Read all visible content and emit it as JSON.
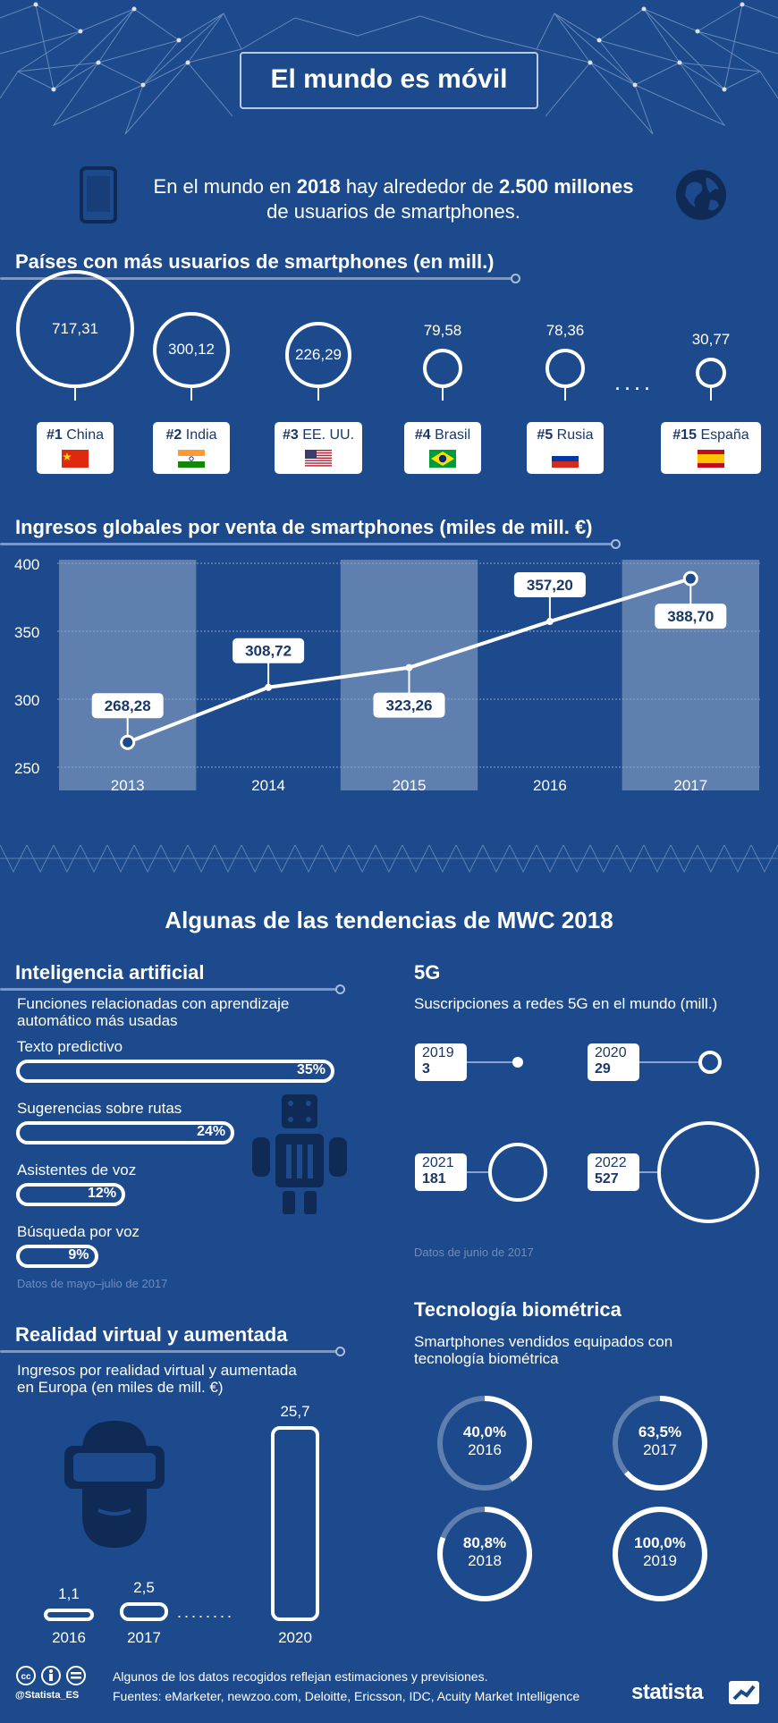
{
  "header": {
    "title": "El mundo es móvil",
    "intro_pre": "En el mundo en ",
    "intro_year": "2018",
    "intro_mid": " hay alrededor de ",
    "intro_value": "2.500 millones",
    "intro_line2": "de usuarios de smartphones."
  },
  "countries": {
    "title": "Países con más usuarios de smartphones (en mill.)",
    "items": [
      {
        "rank": "#1",
        "name": "China",
        "value": "717,31",
        "num": 717.31,
        "flag": "china"
      },
      {
        "rank": "#2",
        "name": "India",
        "value": "300,12",
        "num": 300.12,
        "flag": "india"
      },
      {
        "rank": "#3",
        "name": "EE. UU.",
        "value": "226,29",
        "num": 226.29,
        "flag": "usa"
      },
      {
        "rank": "#4",
        "name": "Brasil",
        "value": "79,58",
        "num": 79.58,
        "flag": "brasil"
      },
      {
        "rank": "#5",
        "name": "Rusia",
        "value": "78,36",
        "num": 78.36,
        "flag": "rusia"
      },
      {
        "rank": "#15",
        "name": "España",
        "value": "30,77",
        "num": 30.77,
        "flag": "espana"
      }
    ],
    "ellipsis": "· · · ·"
  },
  "chart_data": {
    "type": "line",
    "title": "Ingresos globales por venta de smartphones (miles de mill. €)",
    "x": [
      "2013",
      "2014",
      "2015",
      "2016",
      "2017"
    ],
    "values": [
      268.28,
      308.72,
      323.26,
      357.2,
      388.7
    ],
    "value_labels": [
      "268,28",
      "308,72",
      "323,26",
      "357,20",
      "388,70"
    ],
    "yticks": [
      "400",
      "350",
      "300",
      "250"
    ],
    "ylim": [
      250,
      400
    ]
  },
  "trends": {
    "title": "Algunas de las tendencias de MWC 2018"
  },
  "ai": {
    "title": "Inteligencia artificial",
    "subtitle1": "Funciones relacionadas con aprendizaje",
    "subtitle2": "automático más usadas",
    "items": [
      {
        "label": "Texto predictivo",
        "value": "35%",
        "pct": 35
      },
      {
        "label": "Sugerencias sobre rutas",
        "value": "24%",
        "pct": 24
      },
      {
        "label": "Asistentes de voz",
        "value": "12%",
        "pct": 12
      },
      {
        "label": "Búsqueda por voz",
        "value": "9%",
        "pct": 9
      }
    ],
    "note": "Datos de mayo–julio de 2017"
  },
  "fiveg": {
    "title": "5G",
    "subtitle": "Suscripciones a redes 5G en el mundo (mill.)",
    "items": [
      {
        "year": "2019",
        "value": "3",
        "num": 3
      },
      {
        "year": "2020",
        "value": "29",
        "num": 29
      },
      {
        "year": "2021",
        "value": "181",
        "num": 181
      },
      {
        "year": "2022",
        "value": "527",
        "num": 527
      }
    ],
    "note": "Datos de junio de 2017"
  },
  "vr": {
    "title": "Realidad virtual y aumentada",
    "subtitle1": "Ingresos por realidad virtual y aumentada",
    "subtitle2": "en Europa (en miles de mill. €)",
    "items": [
      {
        "year": "2016",
        "value": "1,1",
        "num": 1.1
      },
      {
        "year": "2017",
        "value": "2,5",
        "num": 2.5
      },
      {
        "year": "2020",
        "value": "25,7",
        "num": 25.7
      }
    ]
  },
  "bio": {
    "title": "Tecnología biométrica",
    "subtitle1": "Smartphones vendidos equipados con",
    "subtitle2": "tecnología biométrica",
    "items": [
      {
        "value": "40,0%",
        "year": "2016",
        "pct": 40.0
      },
      {
        "value": "63,5%",
        "year": "2017",
        "pct": 63.5
      },
      {
        "value": "80,8%",
        "year": "2018",
        "pct": 80.8
      },
      {
        "value": "100,0%",
        "year": "2019",
        "pct": 100.0
      }
    ]
  },
  "footer": {
    "handle": "@Statista_ES",
    "note1": "Algunos de los datos recogidos reflejan estimaciones y previsiones.",
    "note2": "Fuentes: eMarketer, newzoo.com, Deloitte, Ericsson, IDC, Acuity Market Intelligence",
    "brand": "statista",
    "colors": {
      "background": "#1c4a8c",
      "panel": "#5f7fae",
      "accent": "#ffffff"
    }
  }
}
